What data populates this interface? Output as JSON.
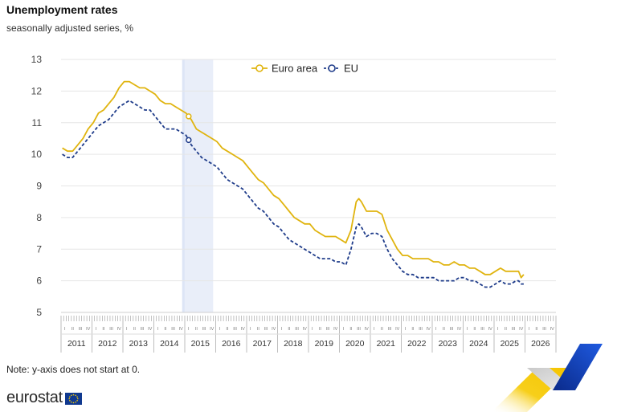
{
  "title": "Unemployment rates",
  "subtitle": "seasonally adjusted series, %",
  "note": "Note: y-axis does not start at 0.",
  "logo_text": "eurostat",
  "colors": {
    "euro_area": "#e0b40f",
    "eu": "#1f3c8a",
    "grid": "#e6e6e6",
    "highlight": "#e9eef9",
    "accent_yellow": "#f5c400",
    "accent_blue": "#1848c8"
  },
  "chart_data": {
    "type": "line",
    "title": "Unemployment rates",
    "subtitle": "seasonally adjusted series, %",
    "xlabel": "",
    "ylabel": "",
    "ylim": [
      5,
      13
    ],
    "yticks": [
      5,
      6,
      7,
      8,
      9,
      10,
      11,
      12,
      13
    ],
    "years": [
      "2011",
      "2012",
      "2013",
      "2014",
      "2015",
      "2016",
      "2017",
      "2018",
      "2019",
      "2020",
      "2021",
      "2022",
      "2023",
      "2024",
      "2025",
      "2026"
    ],
    "quarter_labels": [
      "I",
      "II",
      "III",
      "IV"
    ],
    "x_unit": "month",
    "x_start": "2011-01",
    "legend_position": "top",
    "grid": "horizontal",
    "highlight_range": [
      "2014-12",
      "2015-11"
    ],
    "series": [
      {
        "name": "Euro area",
        "style": "solid",
        "marker": "2015-02",
        "points": [
          [
            "2011-01",
            10.2
          ],
          [
            "2011-03",
            10.1
          ],
          [
            "2011-05",
            10.1
          ],
          [
            "2011-07",
            10.3
          ],
          [
            "2011-09",
            10.5
          ],
          [
            "2011-11",
            10.8
          ],
          [
            "2012-01",
            11.0
          ],
          [
            "2012-03",
            11.3
          ],
          [
            "2012-05",
            11.4
          ],
          [
            "2012-07",
            11.6
          ],
          [
            "2012-09",
            11.8
          ],
          [
            "2012-11",
            12.1
          ],
          [
            "2013-01",
            12.3
          ],
          [
            "2013-03",
            12.3
          ],
          [
            "2013-05",
            12.2
          ],
          [
            "2013-07",
            12.1
          ],
          [
            "2013-09",
            12.1
          ],
          [
            "2013-11",
            12.0
          ],
          [
            "2014-01",
            11.9
          ],
          [
            "2014-03",
            11.7
          ],
          [
            "2014-05",
            11.6
          ],
          [
            "2014-07",
            11.6
          ],
          [
            "2014-09",
            11.5
          ],
          [
            "2014-11",
            11.4
          ],
          [
            "2015-01",
            11.3
          ],
          [
            "2015-03",
            11.1
          ],
          [
            "2015-05",
            10.8
          ],
          [
            "2015-07",
            10.7
          ],
          [
            "2015-09",
            10.6
          ],
          [
            "2015-11",
            10.5
          ],
          [
            "2016-01",
            10.4
          ],
          [
            "2016-03",
            10.2
          ],
          [
            "2016-05",
            10.1
          ],
          [
            "2016-07",
            10.0
          ],
          [
            "2016-09",
            9.9
          ],
          [
            "2016-11",
            9.8
          ],
          [
            "2017-01",
            9.6
          ],
          [
            "2017-03",
            9.4
          ],
          [
            "2017-05",
            9.2
          ],
          [
            "2017-07",
            9.1
          ],
          [
            "2017-09",
            8.9
          ],
          [
            "2017-11",
            8.7
          ],
          [
            "2018-01",
            8.6
          ],
          [
            "2018-03",
            8.4
          ],
          [
            "2018-05",
            8.2
          ],
          [
            "2018-07",
            8.0
          ],
          [
            "2018-09",
            7.9
          ],
          [
            "2018-11",
            7.8
          ],
          [
            "2019-01",
            7.8
          ],
          [
            "2019-03",
            7.6
          ],
          [
            "2019-05",
            7.5
          ],
          [
            "2019-07",
            7.4
          ],
          [
            "2019-09",
            7.4
          ],
          [
            "2019-11",
            7.4
          ],
          [
            "2020-01",
            7.3
          ],
          [
            "2020-03",
            7.2
          ],
          [
            "2020-05",
            7.6
          ],
          [
            "2020-07",
            8.5
          ],
          [
            "2020-08",
            8.6
          ],
          [
            "2020-09",
            8.5
          ],
          [
            "2020-11",
            8.2
          ],
          [
            "2021-01",
            8.2
          ],
          [
            "2021-03",
            8.2
          ],
          [
            "2021-05",
            8.1
          ],
          [
            "2021-07",
            7.6
          ],
          [
            "2021-09",
            7.3
          ],
          [
            "2021-11",
            7.0
          ],
          [
            "2022-01",
            6.8
          ],
          [
            "2022-03",
            6.8
          ],
          [
            "2022-05",
            6.7
          ],
          [
            "2022-07",
            6.7
          ],
          [
            "2022-09",
            6.7
          ],
          [
            "2022-11",
            6.7
          ],
          [
            "2023-01",
            6.6
          ],
          [
            "2023-03",
            6.6
          ],
          [
            "2023-05",
            6.5
          ],
          [
            "2023-07",
            6.5
          ],
          [
            "2023-09",
            6.6
          ],
          [
            "2023-11",
            6.5
          ],
          [
            "2024-01",
            6.5
          ],
          [
            "2024-03",
            6.4
          ],
          [
            "2024-05",
            6.4
          ],
          [
            "2024-07",
            6.3
          ],
          [
            "2024-09",
            6.2
          ],
          [
            "2024-11",
            6.2
          ],
          [
            "2025-01",
            6.3
          ],
          [
            "2025-03",
            6.4
          ],
          [
            "2025-05",
            6.3
          ],
          [
            "2025-07",
            6.3
          ],
          [
            "2025-09",
            6.3
          ],
          [
            "2025-10",
            6.3
          ],
          [
            "2025-11",
            6.1
          ],
          [
            "2025-12",
            6.2
          ]
        ]
      },
      {
        "name": "EU",
        "style": "dashed",
        "marker": "2015-02",
        "points": [
          [
            "2011-01",
            10.0
          ],
          [
            "2011-03",
            9.9
          ],
          [
            "2011-05",
            9.9
          ],
          [
            "2011-07",
            10.1
          ],
          [
            "2011-09",
            10.3
          ],
          [
            "2011-11",
            10.5
          ],
          [
            "2012-01",
            10.7
          ],
          [
            "2012-03",
            10.9
          ],
          [
            "2012-05",
            11.0
          ],
          [
            "2012-07",
            11.1
          ],
          [
            "2012-09",
            11.3
          ],
          [
            "2012-11",
            11.5
          ],
          [
            "2013-01",
            11.6
          ],
          [
            "2013-03",
            11.7
          ],
          [
            "2013-05",
            11.6
          ],
          [
            "2013-07",
            11.5
          ],
          [
            "2013-09",
            11.4
          ],
          [
            "2013-11",
            11.4
          ],
          [
            "2014-01",
            11.2
          ],
          [
            "2014-03",
            11.0
          ],
          [
            "2014-05",
            10.8
          ],
          [
            "2014-07",
            10.8
          ],
          [
            "2014-09",
            10.8
          ],
          [
            "2014-11",
            10.7
          ],
          [
            "2015-01",
            10.6
          ],
          [
            "2015-03",
            10.3
          ],
          [
            "2015-05",
            10.1
          ],
          [
            "2015-07",
            9.9
          ],
          [
            "2015-09",
            9.8
          ],
          [
            "2015-11",
            9.7
          ],
          [
            "2016-01",
            9.6
          ],
          [
            "2016-03",
            9.4
          ],
          [
            "2016-05",
            9.2
          ],
          [
            "2016-07",
            9.1
          ],
          [
            "2016-09",
            9.0
          ],
          [
            "2016-11",
            8.9
          ],
          [
            "2017-01",
            8.7
          ],
          [
            "2017-03",
            8.5
          ],
          [
            "2017-05",
            8.3
          ],
          [
            "2017-07",
            8.2
          ],
          [
            "2017-09",
            8.0
          ],
          [
            "2017-11",
            7.8
          ],
          [
            "2018-01",
            7.7
          ],
          [
            "2018-03",
            7.5
          ],
          [
            "2018-05",
            7.3
          ],
          [
            "2018-07",
            7.2
          ],
          [
            "2018-09",
            7.1
          ],
          [
            "2018-11",
            7.0
          ],
          [
            "2019-01",
            6.9
          ],
          [
            "2019-03",
            6.8
          ],
          [
            "2019-05",
            6.7
          ],
          [
            "2019-07",
            6.7
          ],
          [
            "2019-09",
            6.7
          ],
          [
            "2019-11",
            6.6
          ],
          [
            "2020-01",
            6.6
          ],
          [
            "2020-03",
            6.5
          ],
          [
            "2020-05",
            7.0
          ],
          [
            "2020-07",
            7.7
          ],
          [
            "2020-08",
            7.8
          ],
          [
            "2020-09",
            7.7
          ],
          [
            "2020-11",
            7.4
          ],
          [
            "2021-01",
            7.5
          ],
          [
            "2021-03",
            7.5
          ],
          [
            "2021-05",
            7.4
          ],
          [
            "2021-07",
            7.0
          ],
          [
            "2021-09",
            6.7
          ],
          [
            "2021-11",
            6.5
          ],
          [
            "2022-01",
            6.3
          ],
          [
            "2022-03",
            6.2
          ],
          [
            "2022-05",
            6.2
          ],
          [
            "2022-07",
            6.1
          ],
          [
            "2022-09",
            6.1
          ],
          [
            "2022-11",
            6.1
          ],
          [
            "2023-01",
            6.1
          ],
          [
            "2023-03",
            6.0
          ],
          [
            "2023-05",
            6.0
          ],
          [
            "2023-07",
            6.0
          ],
          [
            "2023-09",
            6.0
          ],
          [
            "2023-11",
            6.1
          ],
          [
            "2024-01",
            6.1
          ],
          [
            "2024-03",
            6.0
          ],
          [
            "2024-05",
            6.0
          ],
          [
            "2024-07",
            5.9
          ],
          [
            "2024-09",
            5.8
          ],
          [
            "2024-11",
            5.8
          ],
          [
            "2025-01",
            5.9
          ],
          [
            "2025-03",
            6.0
          ],
          [
            "2025-05",
            5.9
          ],
          [
            "2025-07",
            5.9
          ],
          [
            "2025-09",
            6.0
          ],
          [
            "2025-10",
            6.0
          ],
          [
            "2025-11",
            5.9
          ],
          [
            "2025-12",
            5.9
          ]
        ]
      }
    ]
  }
}
